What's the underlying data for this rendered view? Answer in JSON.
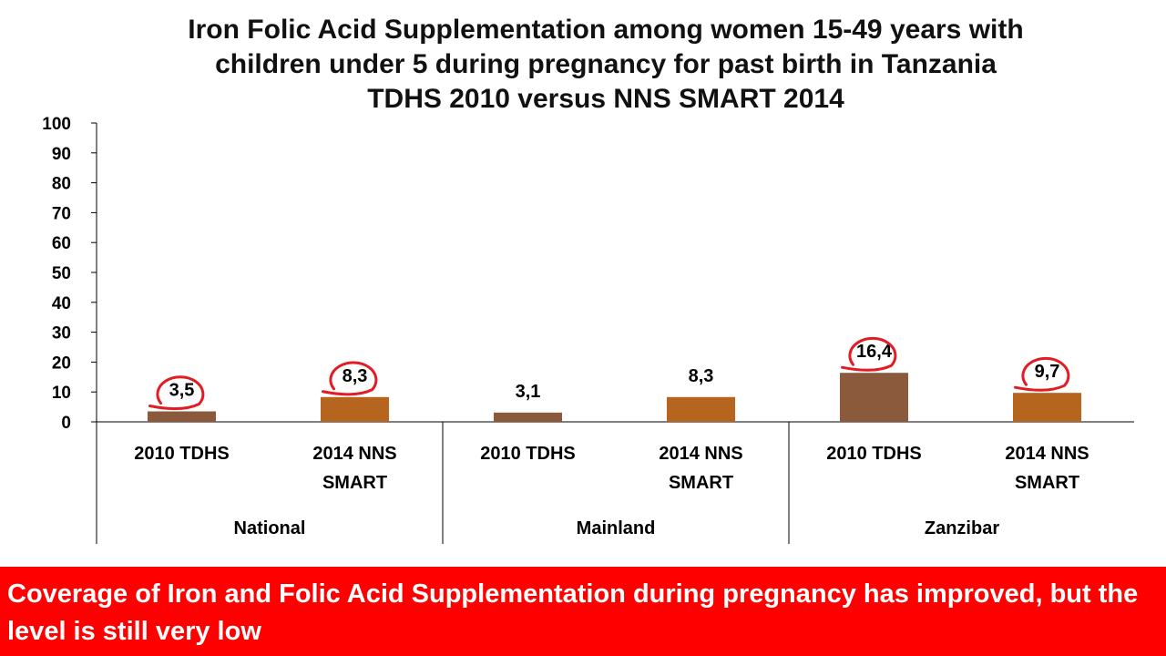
{
  "chart_data": {
    "type": "bar",
    "title_lines": [
      "Iron Folic Acid Supplementation among women 15-49 years with",
      "children under 5 during pregnancy for past birth in Tanzania",
      "TDHS 2010 versus NNS SMART 2014"
    ],
    "xlabel": "",
    "ylabel": "",
    "ylim": [
      0,
      100
    ],
    "yticks": [
      0,
      10,
      20,
      30,
      40,
      50,
      60,
      70,
      80,
      90,
      100
    ],
    "grid": false,
    "legend": "none",
    "groups": [
      {
        "name": "National",
        "bars": [
          {
            "label": [
              "2010 TDHS"
            ],
            "value": 3.5,
            "display": "3,5",
            "color": "#8b5a3c",
            "circled": true
          },
          {
            "label": [
              "2014 NNS",
              "SMART"
            ],
            "value": 8.3,
            "display": "8,3",
            "color": "#b5651d",
            "circled": true
          }
        ]
      },
      {
        "name": "Mainland",
        "bars": [
          {
            "label": [
              "2010 TDHS"
            ],
            "value": 3.1,
            "display": "3,1",
            "color": "#8b5a3c",
            "circled": false
          },
          {
            "label": [
              "2014 NNS",
              "SMART"
            ],
            "value": 8.3,
            "display": "8,3",
            "color": "#b5651d",
            "circled": false
          }
        ]
      },
      {
        "name": "Zanzibar",
        "bars": [
          {
            "label": [
              "2010 TDHS"
            ],
            "value": 16.4,
            "display": "16,4",
            "color": "#8b5a3c",
            "circled": true
          },
          {
            "label": [
              "2014 NNS",
              "SMART"
            ],
            "value": 9.7,
            "display": "9,7",
            "color": "#b5651d",
            "circled": true
          }
        ]
      }
    ],
    "annotation_color": "#e31b23"
  },
  "footer": {
    "text": "Coverage of Iron and Folic Acid Supplementation during pregnancy has improved, but the level is still very low",
    "background": "#ff0000"
  }
}
